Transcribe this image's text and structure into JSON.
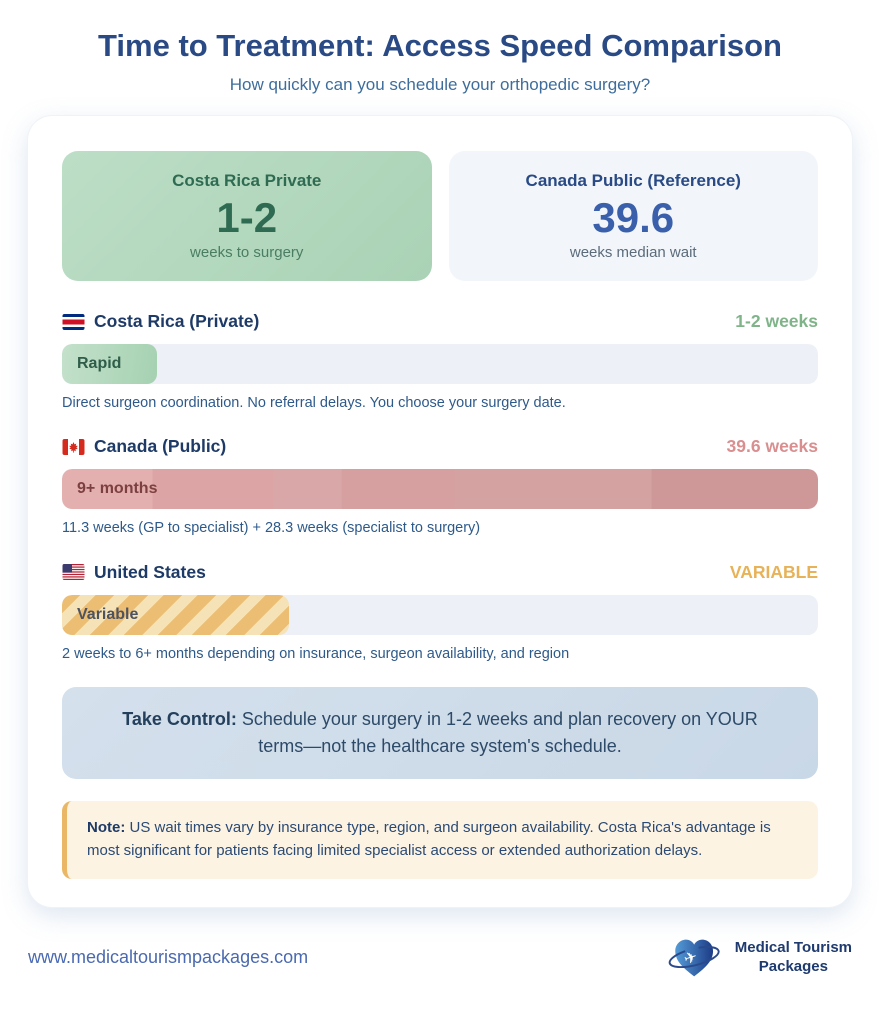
{
  "header": {
    "title": "Time to Treatment: Access Speed Comparison",
    "subtitle": "How quickly can you schedule your orthopedic surgery?"
  },
  "stat_cards": [
    {
      "title": "Costa Rica Private",
      "value": "1-2",
      "caption": "weeks to surgery"
    },
    {
      "title": "Canada Public (Reference)",
      "value": "39.6",
      "caption": "weeks median wait"
    }
  ],
  "chart_data": {
    "type": "bar",
    "title": "Time to Treatment: Access Speed Comparison",
    "subtitle": "How quickly can you schedule your orthopedic surgery?",
    "unit": "weeks of wait time",
    "rows": [
      {
        "country": "Costa Rica (Private)",
        "flag": "costa-rica",
        "value": "1-2 weeks",
        "approx_weeks": 2,
        "bar_label": "Rapid",
        "fill_percent": 12.5,
        "description": "Direct surgeon coordination. No referral delays. You choose your surgery date."
      },
      {
        "country": "Canada (Public)",
        "flag": "canada",
        "value": "39.6 weeks",
        "approx_weeks": 39.6,
        "bar_label": "9+ months",
        "fill_percent": 100,
        "description": "11.3 weeks (GP to specialist) + 28.3 weeks (specialist to surgery)"
      },
      {
        "country": "United States",
        "flag": "united-states",
        "value": "VARIABLE",
        "approx_weeks": null,
        "bar_label": "Variable",
        "fill_percent": 30,
        "description": "2 weeks to 6+ months depending on insurance, surgeon availability, and region"
      }
    ]
  },
  "callout": {
    "label": "Take Control:",
    "text": " Schedule your surgery in 1-2 weeks and plan recovery on YOUR terms—not the healthcare system's schedule."
  },
  "note": {
    "label": "Note:",
    "text": " US wait times vary by insurance type, region, and surgeon availability. Costa Rica's advantage is most significant for patients facing limited specialist access or extended authorization delays."
  },
  "footer": {
    "website": "www.medicaltourismpackages.com",
    "logo_line1": "Medical Tourism",
    "logo_line2": "Packages"
  },
  "theme": {
    "page-bg": "#ffffff",
    "title-navy": "#2a4a85",
    "subtitle-blue": "#3e6d9c",
    "navy": "#1e3a66",
    "desc-blue": "#2e5a8a",
    "green-dark": "#2f6b52",
    "green-value": "#7fb489",
    "card-green-a": "#bcdec6",
    "card-green-b": "#aad2b5",
    "card-blue-bg": "#f2f6fa",
    "blue-number": "#3a60ab",
    "gray-text": "#5b6b7c",
    "pink-value": "#d98f8f",
    "maroon": "#7d4040",
    "orange-value": "#e7b258",
    "stripe-gold": "#ecbe74",
    "stripe-cream": "#f5e2b6",
    "track": "#edf1f7",
    "callout-bg": "#c9d8e7",
    "callout-text": "#2d4a68",
    "note-bg": "#fdf3e2",
    "note-border": "#e9b765",
    "note-text": "#2a4a75",
    "link-blue": "#4a69b0"
  }
}
